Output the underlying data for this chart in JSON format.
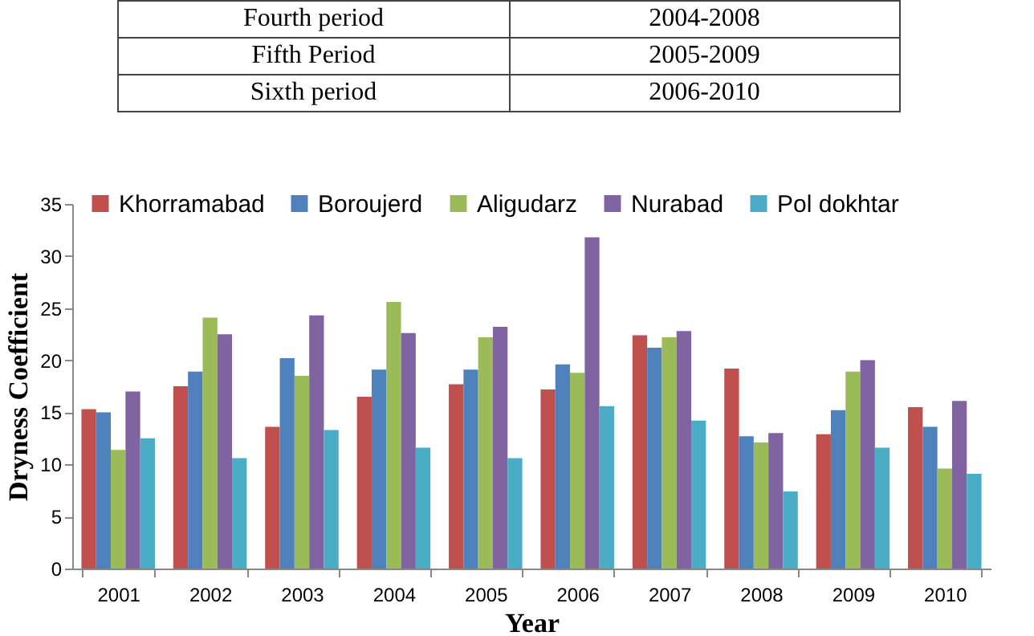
{
  "chart_data": [
    {
      "type": "other",
      "annotations": [
        "Fourth period",
        "2004-2008",
        "Fifth Period",
        "2005-2009",
        "Sixth period",
        "2006-2010"
      ]
    },
    {
      "type": "bar",
      "xlabel": "Year",
      "ylabel": "Dryness Coefficient",
      "categories": [
        "2001",
        "2002",
        "2003",
        "2004",
        "2005",
        "2006",
        "2007",
        "2008",
        "2009",
        "2010"
      ],
      "series": [
        {
          "name": "Khorramabad",
          "color": "#c0504d",
          "values": [
            15.3,
            17.5,
            13.6,
            16.5,
            17.7,
            17.2,
            22.4,
            19.2,
            12.9,
            15.5
          ]
        },
        {
          "name": "Boroujerd",
          "color": "#4f81bd",
          "values": [
            15.0,
            18.9,
            20.2,
            19.1,
            19.1,
            19.6,
            21.2,
            12.7,
            15.2,
            13.6
          ]
        },
        {
          "name": "Aligudarz",
          "color": "#9bbb59",
          "values": [
            11.4,
            24.1,
            18.5,
            25.6,
            22.2,
            18.8,
            22.2,
            12.1,
            18.9,
            9.6
          ]
        },
        {
          "name": "Nurabad",
          "color": "#8064a2",
          "values": [
            17.0,
            22.5,
            24.3,
            22.6,
            23.2,
            31.8,
            22.8,
            13.0,
            20.0,
            16.1
          ]
        },
        {
          "name": "Pol dokhtar",
          "color": "#4bacc6",
          "values": [
            12.5,
            10.6,
            13.3,
            11.6,
            10.6,
            15.6,
            14.2,
            7.4,
            11.6,
            9.1
          ]
        }
      ],
      "ylim": [
        0,
        35
      ],
      "yticks": [
        0,
        5,
        10,
        15,
        20,
        25,
        30,
        35
      ],
      "grid": false,
      "legend": "top"
    }
  ]
}
